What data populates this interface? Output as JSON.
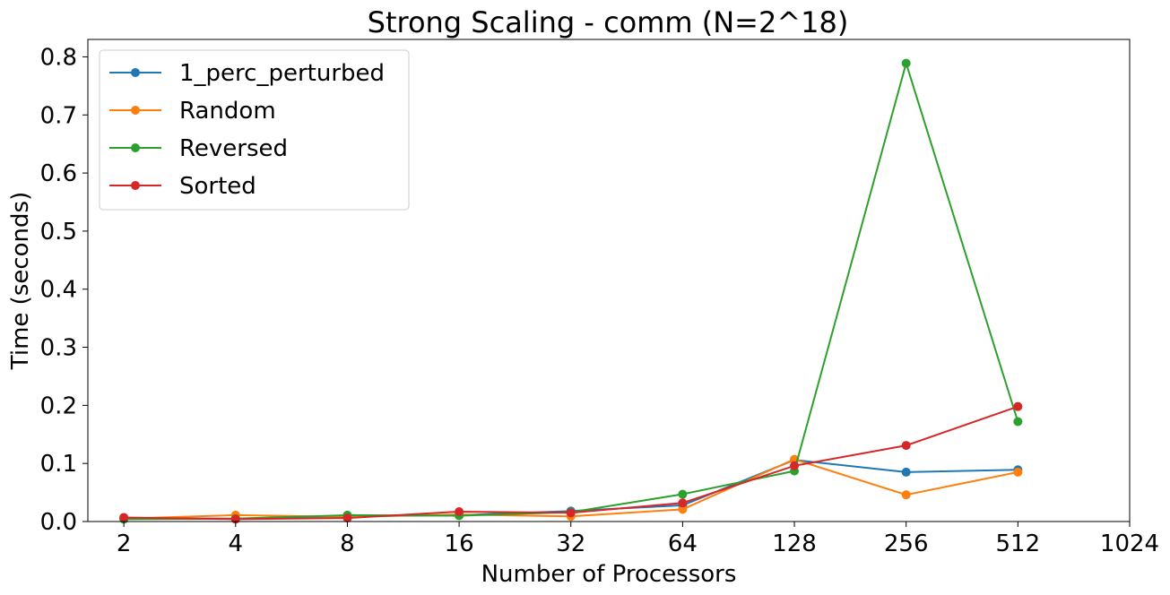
{
  "chart_data": {
    "type": "line",
    "title": "Strong Scaling - comm (N=2^18)",
    "xlabel": "Number of Processors",
    "ylabel": "Time (seconds)",
    "x_scale": "log2",
    "x_ticks": [
      "2",
      "4",
      "8",
      "16",
      "32",
      "64",
      "128",
      "256",
      "512",
      "1024"
    ],
    "x": [
      2,
      4,
      8,
      16,
      32,
      64,
      128,
      256,
      512
    ],
    "xlim": [
      1.6,
      1024
    ],
    "ylim": [
      0.0,
      0.83
    ],
    "y_ticks": [
      "0.0",
      "0.1",
      "0.2",
      "0.3",
      "0.4",
      "0.5",
      "0.6",
      "0.7",
      "0.8"
    ],
    "grid": false,
    "legend_position": "top-left",
    "series": [
      {
        "name": "1_perc_perturbed",
        "color": "#1f77b4",
        "values": [
          0.006,
          0.005,
          0.009,
          0.011,
          0.018,
          0.028,
          0.106,
          0.085,
          0.089
        ]
      },
      {
        "name": "Random",
        "color": "#ff7f0e",
        "values": [
          0.005,
          0.011,
          0.008,
          0.012,
          0.009,
          0.021,
          0.107,
          0.046,
          0.085
        ]
      },
      {
        "name": "Reversed",
        "color": "#2ca02c",
        "values": [
          0.004,
          0.005,
          0.011,
          0.01,
          0.016,
          0.047,
          0.087,
          0.789,
          0.172
        ]
      },
      {
        "name": "Sorted",
        "color": "#d62728",
        "values": [
          0.007,
          0.004,
          0.006,
          0.017,
          0.015,
          0.032,
          0.096,
          0.131,
          0.198
        ]
      }
    ]
  }
}
